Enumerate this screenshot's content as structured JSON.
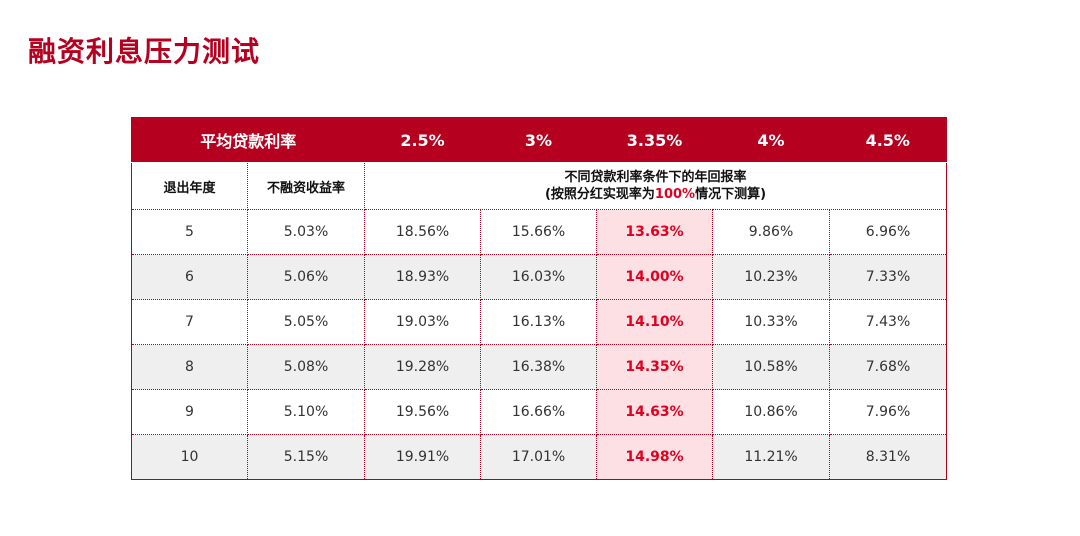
{
  "title": "融资利息压力测试",
  "table": {
    "header_label": "平均贷款利率",
    "rates": [
      "2.5%",
      "3%",
      "3.35%",
      "4%",
      "4.5%"
    ],
    "sub_headers": {
      "exit_year": "退出年度",
      "unlevered_return": "不融资收益率",
      "note_line1": "不同贷款利率条件下的年回报率",
      "note_line2_prefix": "(按照分红实现率为",
      "note_line2_highlight": "100%",
      "note_line2_suffix": "情况下测算)"
    },
    "highlight_column": "3.35%",
    "rows": [
      {
        "year": "5",
        "unlevered": "5.03%",
        "r25": "18.56%",
        "r30": "15.66%",
        "r335": "13.63%",
        "r40": "9.86%",
        "r45": "6.96%"
      },
      {
        "year": "6",
        "unlevered": "5.06%",
        "r25": "18.93%",
        "r30": "16.03%",
        "r335": "14.00%",
        "r40": "10.23%",
        "r45": "7.33%"
      },
      {
        "year": "7",
        "unlevered": "5.05%",
        "r25": "19.03%",
        "r30": "16.13%",
        "r335": "14.10%",
        "r40": "10.33%",
        "r45": "7.43%"
      },
      {
        "year": "8",
        "unlevered": "5.08%",
        "r25": "19.28%",
        "r30": "16.38%",
        "r335": "14.35%",
        "r40": "10.58%",
        "r45": "7.68%"
      },
      {
        "year": "9",
        "unlevered": "5.10%",
        "r25": "19.56%",
        "r30": "16.66%",
        "r335": "14.63%",
        "r40": "10.86%",
        "r45": "7.96%"
      },
      {
        "year": "10",
        "unlevered": "5.15%",
        "r25": "19.91%",
        "r30": "17.01%",
        "r335": "14.98%",
        "r40": "11.21%",
        "r45": "8.31%"
      }
    ]
  },
  "colors": {
    "brand_red": "#b5001f",
    "highlight_text": "#e00020",
    "highlight_bg": "#fde0e3",
    "alt_row_bg": "#efefef"
  }
}
